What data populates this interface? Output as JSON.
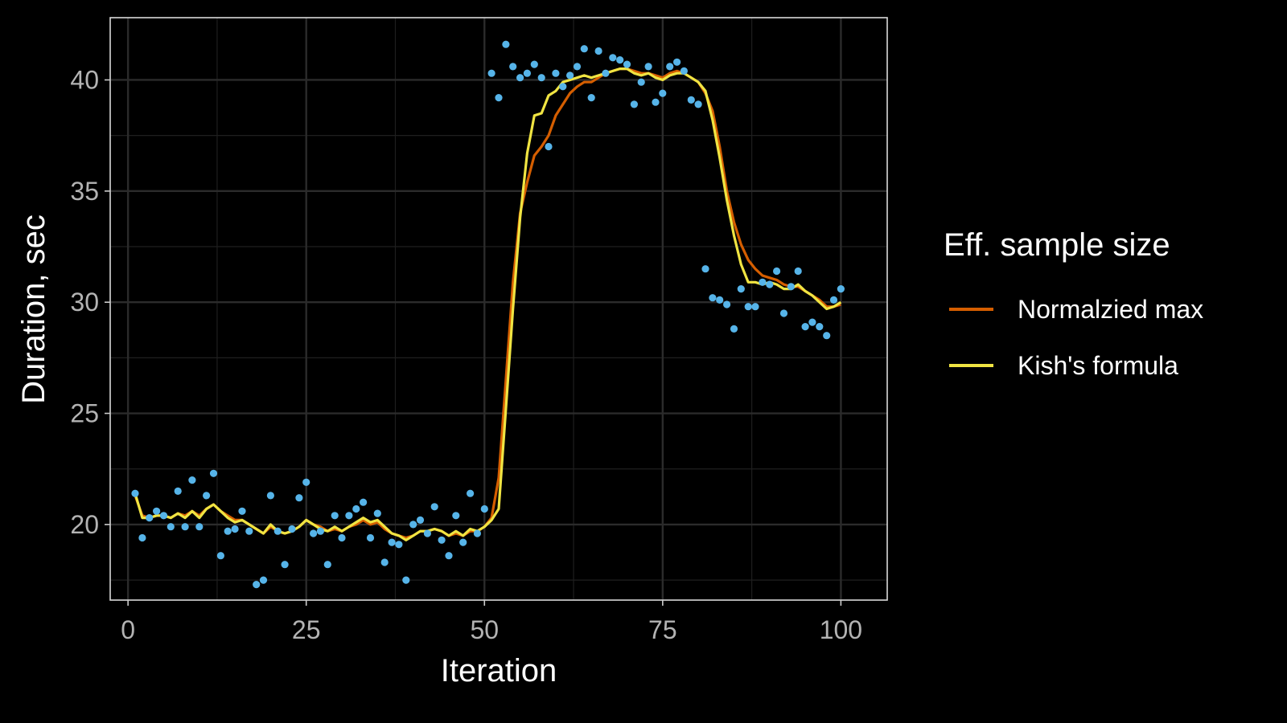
{
  "chart_data": {
    "type": "line",
    "xlabel": "Iteration",
    "ylabel": "Duration, sec",
    "xlim": [
      -2.5,
      106.5
    ],
    "ylim": [
      16.6,
      42.8
    ],
    "x_ticks": [
      0,
      25,
      50,
      75,
      100
    ],
    "y_ticks": [
      20,
      25,
      30,
      35,
      40
    ],
    "x_tick_labels": [
      "0",
      "25",
      "50",
      "75",
      "100"
    ],
    "y_tick_labels": [
      "20",
      "25",
      "30",
      "35",
      "40"
    ],
    "grid": true,
    "legend": {
      "title": "Eff. sample size",
      "placement": "right"
    },
    "x": [
      1,
      2,
      3,
      4,
      5,
      6,
      7,
      8,
      9,
      10,
      11,
      12,
      13,
      14,
      15,
      16,
      17,
      18,
      19,
      20,
      21,
      22,
      23,
      24,
      25,
      26,
      27,
      28,
      29,
      30,
      31,
      32,
      33,
      34,
      35,
      36,
      37,
      38,
      39,
      40,
      41,
      42,
      43,
      44,
      45,
      46,
      47,
      48,
      49,
      50,
      51,
      52,
      53,
      54,
      55,
      56,
      57,
      58,
      59,
      60,
      61,
      62,
      63,
      64,
      65,
      66,
      67,
      68,
      69,
      70,
      71,
      72,
      73,
      74,
      75,
      76,
      77,
      78,
      79,
      80,
      81,
      82,
      83,
      84,
      85,
      86,
      87,
      88,
      89,
      90,
      91,
      92,
      93,
      94,
      95,
      96,
      97,
      98,
      99,
      100
    ],
    "points": {
      "color": "#56B4E9",
      "values": [
        21.4,
        19.4,
        20.3,
        20.6,
        20.4,
        19.9,
        21.5,
        19.9,
        22.0,
        19.9,
        21.3,
        22.3,
        18.6,
        19.7,
        19.8,
        20.6,
        19.7,
        17.3,
        17.5,
        21.3,
        19.7,
        18.2,
        19.8,
        21.2,
        21.9,
        19.6,
        19.7,
        18.2,
        20.4,
        19.4,
        20.4,
        20.7,
        21.0,
        19.4,
        20.5,
        18.3,
        19.2,
        19.1,
        17.5,
        20.0,
        20.2,
        19.6,
        20.8,
        19.3,
        18.6,
        20.4,
        19.2,
        21.4,
        19.6,
        20.7,
        40.3,
        39.2,
        41.6,
        40.6,
        40.1,
        40.3,
        40.7,
        40.1,
        37.0,
        40.3,
        39.7,
        40.2,
        40.6,
        41.4,
        39.2,
        41.3,
        40.3,
        41.0,
        40.9,
        40.7,
        38.9,
        39.9,
        40.6,
        39.0,
        39.4,
        40.6,
        40.8,
        40.4,
        39.1,
        38.9,
        31.5,
        30.2,
        30.1,
        29.9,
        28.8,
        30.6,
        29.8,
        29.8,
        30.9,
        30.8,
        31.4,
        29.5,
        30.7,
        31.4,
        28.9,
        29.1,
        28.9,
        28.5,
        30.1,
        30.6
      ]
    },
    "series": [
      {
        "name": "Normalzied max",
        "color": "#D55E00",
        "values": [
          21.3,
          20.4,
          20.3,
          20.4,
          20.4,
          20.3,
          20.5,
          20.4,
          20.6,
          20.4,
          20.7,
          20.9,
          20.6,
          20.4,
          20.2,
          20.2,
          20.0,
          19.8,
          19.6,
          19.9,
          19.7,
          19.6,
          19.7,
          19.9,
          20.2,
          20.0,
          19.9,
          19.7,
          19.8,
          19.7,
          19.9,
          20.0,
          20.2,
          20.0,
          20.1,
          19.8,
          19.6,
          19.5,
          19.4,
          19.5,
          19.7,
          19.7,
          19.8,
          19.7,
          19.5,
          19.6,
          19.5,
          19.7,
          19.7,
          19.9,
          20.3,
          22.1,
          26.5,
          30.9,
          34.0,
          35.4,
          36.6,
          37.0,
          37.5,
          38.4,
          38.9,
          39.4,
          39.7,
          39.9,
          39.9,
          40.1,
          40.3,
          40.4,
          40.5,
          40.5,
          40.4,
          40.3,
          40.3,
          40.2,
          40.1,
          40.3,
          40.4,
          40.3,
          40.1,
          39.9,
          39.4,
          38.6,
          37.0,
          35.0,
          33.6,
          32.6,
          31.9,
          31.5,
          31.2,
          31.1,
          31.0,
          30.8,
          30.7,
          30.7,
          30.5,
          30.3,
          30.1,
          29.8,
          29.8,
          29.9
        ]
      },
      {
        "name": "Kish's formula",
        "color": "#F0E442",
        "values": [
          21.4,
          20.3,
          20.3,
          20.4,
          20.4,
          20.3,
          20.5,
          20.3,
          20.6,
          20.3,
          20.7,
          20.9,
          20.6,
          20.3,
          20.1,
          20.2,
          20.0,
          19.8,
          19.6,
          20.0,
          19.7,
          19.6,
          19.7,
          19.9,
          20.2,
          20.0,
          19.8,
          19.7,
          19.9,
          19.7,
          19.9,
          20.1,
          20.3,
          20.1,
          20.2,
          19.9,
          19.6,
          19.5,
          19.3,
          19.5,
          19.7,
          19.7,
          19.8,
          19.7,
          19.5,
          19.7,
          19.5,
          19.8,
          19.7,
          19.9,
          20.2,
          20.7,
          25.2,
          29.7,
          33.8,
          36.7,
          38.4,
          38.5,
          39.3,
          39.5,
          39.9,
          40.0,
          40.1,
          40.2,
          40.1,
          40.2,
          40.3,
          40.4,
          40.5,
          40.5,
          40.3,
          40.2,
          40.3,
          40.1,
          40.0,
          40.2,
          40.3,
          40.3,
          40.1,
          39.9,
          39.5,
          38.2,
          36.5,
          34.6,
          33.0,
          31.7,
          30.9,
          30.9,
          30.8,
          30.9,
          30.8,
          30.6,
          30.6,
          30.8,
          30.5,
          30.3,
          30.0,
          29.7,
          29.8,
          30.0
        ]
      }
    ]
  }
}
